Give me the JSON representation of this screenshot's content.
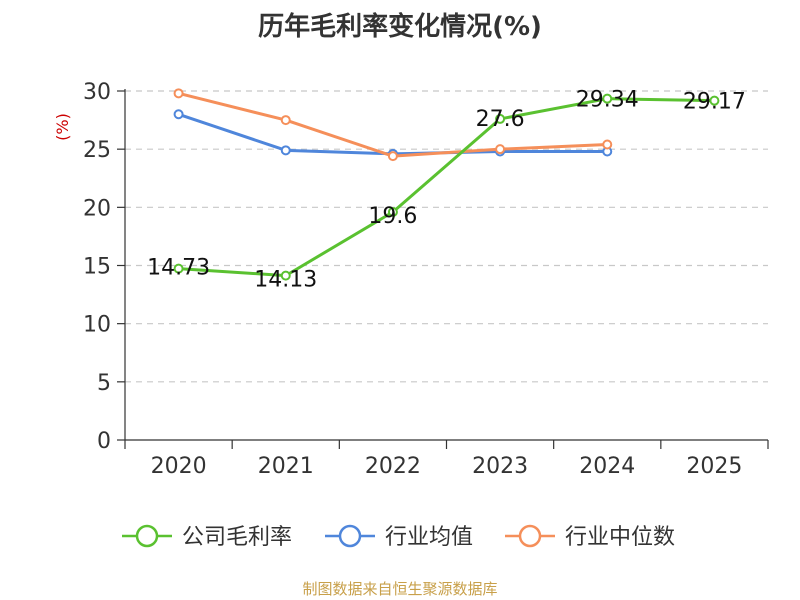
{
  "chart_data": {
    "type": "line",
    "title": "历年毛利率变化情况(%)",
    "ylabel": "(%)",
    "categories": [
      "2020",
      "2021",
      "2022",
      "2023",
      "2024",
      "2025"
    ],
    "ylim": [
      0,
      30
    ],
    "yticks": [
      0,
      5,
      10,
      15,
      20,
      25,
      30
    ],
    "grid": true,
    "legend_position": "bottom",
    "series": [
      {
        "name": "公司毛利率",
        "color": "#5ac130",
        "values": [
          14.73,
          14.13,
          19.6,
          27.6,
          29.34,
          29.17
        ],
        "labels": [
          "14.73",
          "14.13",
          "19.6",
          "27.6",
          "29.34",
          "29.17"
        ]
      },
      {
        "name": "行业均值",
        "color": "#4f86db",
        "values": [
          28.0,
          24.9,
          24.6,
          24.8,
          24.8,
          null
        ]
      },
      {
        "name": "行业中位数",
        "color": "#f58f5a",
        "values": [
          29.8,
          27.5,
          24.4,
          25.0,
          25.4,
          null
        ]
      }
    ]
  },
  "footer": {
    "source": "制图数据来自恒生聚源数据库"
  }
}
